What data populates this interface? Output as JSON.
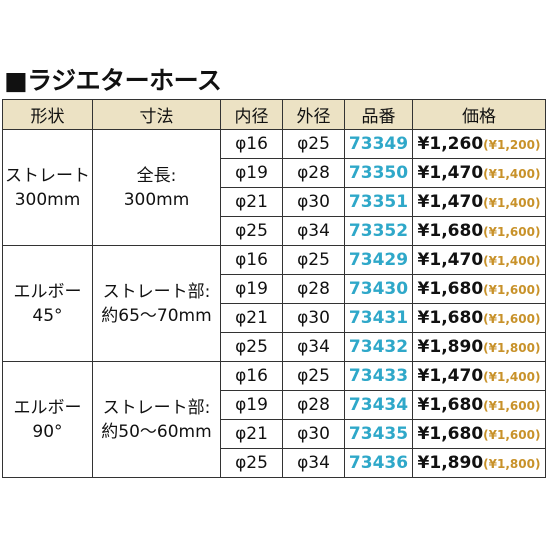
{
  "title": "■ラジエターホース",
  "headers": [
    "形状",
    "寸法",
    "内径",
    "外径",
    "品番",
    "価格"
  ],
  "groups": [
    {
      "shape": [
        "ストレート",
        "300mm"
      ],
      "size": [
        "全長:",
        "300mm"
      ],
      "rows": [
        {
          "inner": "φ16",
          "outer": "φ25",
          "code": "73349",
          "price": "¥1,260",
          "price_excl": "(¥1,200)"
        },
        {
          "inner": "φ19",
          "outer": "φ28",
          "code": "73350",
          "price": "¥1,470",
          "price_excl": "(¥1,400)"
        },
        {
          "inner": "φ21",
          "outer": "φ30",
          "code": "73351",
          "price": "¥1,470",
          "price_excl": "(¥1,400)"
        },
        {
          "inner": "φ25",
          "outer": "φ34",
          "code": "73352",
          "price": "¥1,680",
          "price_excl": "(¥1,600)"
        }
      ]
    },
    {
      "shape": [
        "エルボー",
        "45°"
      ],
      "size": [
        "ストレート部:",
        "約65〜70mm"
      ],
      "rows": [
        {
          "inner": "φ16",
          "outer": "φ25",
          "code": "73429",
          "price": "¥1,470",
          "price_excl": "(¥1,400)"
        },
        {
          "inner": "φ19",
          "outer": "φ28",
          "code": "73430",
          "price": "¥1,680",
          "price_excl": "(¥1,600)"
        },
        {
          "inner": "φ21",
          "outer": "φ30",
          "code": "73431",
          "price": "¥1,680",
          "price_excl": "(¥1,600)"
        },
        {
          "inner": "φ25",
          "outer": "φ34",
          "code": "73432",
          "price": "¥1,890",
          "price_excl": "(¥1,800)"
        }
      ]
    },
    {
      "shape": [
        "エルボー",
        "90°"
      ],
      "size": [
        "ストレート部:",
        "約50〜60mm"
      ],
      "rows": [
        {
          "inner": "φ16",
          "outer": "φ25",
          "code": "73433",
          "price": "¥1,470",
          "price_excl": "(¥1,400)"
        },
        {
          "inner": "φ19",
          "outer": "φ28",
          "code": "73434",
          "price": "¥1,680",
          "price_excl": "(¥1,600)"
        },
        {
          "inner": "φ21",
          "outer": "φ30",
          "code": "73435",
          "price": "¥1,680",
          "price_excl": "(¥1,600)"
        },
        {
          "inner": "φ25",
          "outer": "φ34",
          "code": "73436",
          "price": "¥1,890",
          "price_excl": "(¥1,800)"
        }
      ]
    }
  ],
  "colors": {
    "header_bg": "#ece2c4",
    "code": "#2fa8c9",
    "tax_excl": "#c8922a"
  }
}
